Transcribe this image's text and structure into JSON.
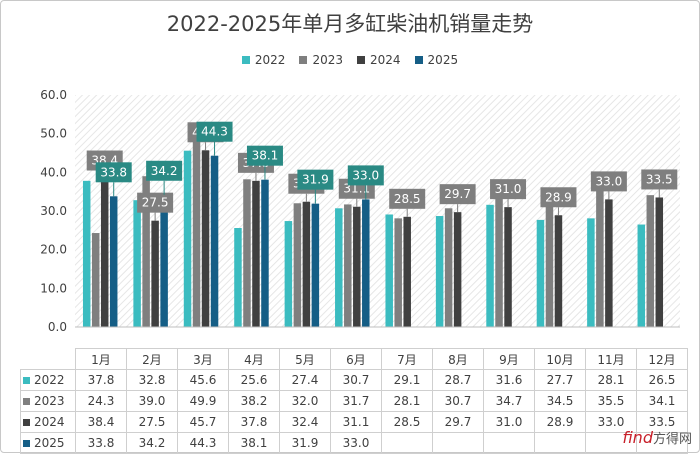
{
  "title": "2022-2025年单月多缸柴油机销量走势",
  "watermark": {
    "latin": "find",
    "cn": "方得网"
  },
  "chart_data": {
    "type": "bar",
    "title": "2022-2025年单月多缸柴油机销量走势",
    "categories": [
      "1月",
      "2月",
      "3月",
      "4月",
      "5月",
      "6月",
      "7月",
      "8月",
      "9月",
      "10月",
      "11月",
      "12月"
    ],
    "ylim": [
      0,
      60
    ],
    "yticks": [
      "0.0",
      "10.0",
      "20.0",
      "30.0",
      "40.0",
      "50.0",
      "60.0"
    ],
    "legend_position": "top",
    "grid": false,
    "series": [
      {
        "name": "2022",
        "color": "#3bbcc0",
        "values": [
          37.8,
          32.8,
          45.6,
          25.6,
          27.4,
          30.7,
          29.1,
          28.7,
          31.6,
          27.7,
          28.1,
          26.5
        ],
        "display": [
          "37.8",
          "32.8",
          "45.6",
          "25.6",
          "27.4",
          "30.7",
          "29.1",
          "28.7",
          "31.6",
          "27.7",
          "28.1",
          "26.5"
        ]
      },
      {
        "name": "2023",
        "color": "#7f7f7f",
        "values": [
          24.3,
          39.0,
          49.9,
          38.2,
          32.0,
          31.7,
          28.1,
          30.7,
          34.7,
          34.5,
          35.5,
          34.1
        ],
        "display": [
          "24.3",
          "39.0",
          "49.9",
          "38.2",
          "32.0",
          "31.7",
          "28.1",
          "30.7",
          "34.7",
          "34.5",
          "35.5",
          "34.1"
        ]
      },
      {
        "name": "2024",
        "color": "#404040",
        "values": [
          38.4,
          27.5,
          45.7,
          37.8,
          32.4,
          31.1,
          28.5,
          29.7,
          31.0,
          28.9,
          33.0,
          33.5
        ],
        "display": [
          "38.4",
          "27.5",
          "45.7",
          "37.8",
          "32.4",
          "31.1",
          "28.5",
          "29.7",
          "31.0",
          "28.9",
          "33.0",
          "33.5"
        ]
      },
      {
        "name": "2025",
        "color": "#155e86",
        "values": [
          33.8,
          34.2,
          44.3,
          38.1,
          31.9,
          33.0,
          null,
          null,
          null,
          null,
          null,
          null
        ],
        "display": [
          "33.8",
          "34.2",
          "44.3",
          "38.1",
          "31.9",
          "33.0",
          "",
          "",
          "",
          "",
          "",
          ""
        ]
      }
    ],
    "annotations": [
      {
        "series": "2024",
        "month": "1月",
        "text": "38.4"
      },
      {
        "series": "2025",
        "month": "1月",
        "text": "33.8"
      },
      {
        "series": "2024",
        "month": "2月",
        "text": "27.5"
      },
      {
        "series": "2025",
        "month": "2月",
        "text": "34.2"
      },
      {
        "series": "2024",
        "month": "3月",
        "text": "45.7"
      },
      {
        "series": "2025",
        "month": "3月",
        "text": "44.3"
      },
      {
        "series": "2024",
        "month": "4月",
        "text": "37.8"
      },
      {
        "series": "2025",
        "month": "4月",
        "text": "38.1"
      },
      {
        "series": "2024",
        "month": "5月",
        "text": "32.4"
      },
      {
        "series": "2025",
        "month": "5月",
        "text": "31.9"
      },
      {
        "series": "2024",
        "month": "6月",
        "text": "31.1"
      },
      {
        "series": "2025",
        "month": "6月",
        "text": "33.0"
      },
      {
        "series": "2024",
        "month": "7月",
        "text": "28.5"
      },
      {
        "series": "2024",
        "month": "8月",
        "text": "29.7"
      },
      {
        "series": "2024",
        "month": "9月",
        "text": "31.0"
      },
      {
        "series": "2024",
        "month": "10月",
        "text": "28.9"
      },
      {
        "series": "2024",
        "month": "11月",
        "text": "33.0"
      },
      {
        "series": "2024",
        "month": "12月",
        "text": "33.5"
      }
    ]
  }
}
